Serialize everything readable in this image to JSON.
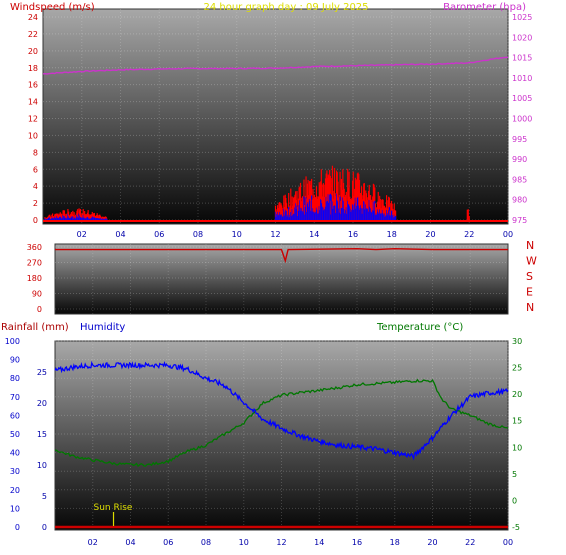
{
  "header": {
    "title": "24 hour graph day : 09 July 2025",
    "windspeed_label": "Windspeed (m/s)",
    "barometer_label": "Barometer (hpa)",
    "rainfall_label": "Rainfall (mm)",
    "humidity_label": "Humidity",
    "temperature_label": "Temperature (°C)",
    "sunrise_label": "Sun Rise"
  },
  "colors": {
    "wind": "#ff0000",
    "gust": "#0000ff",
    "barometer": "#cc33cc",
    "direction": "#cc0000",
    "humidity": "#0000ff",
    "temperature": "#007700",
    "rain": "#cc0000",
    "rain_axis": "#aa0000",
    "title": "#dddd00",
    "sunrise": "#dddd00",
    "frame": "#333333"
  },
  "chart_data": [
    {
      "type": "line",
      "name": "wind-barometer",
      "x_ticks": [
        "02",
        "04",
        "06",
        "08",
        "10",
        "12",
        "14",
        "16",
        "18",
        "20",
        "22",
        "00"
      ],
      "x_range": [
        0,
        24
      ],
      "y_left": {
        "ticks": [
          "0",
          "2",
          "4",
          "6",
          "8",
          "10",
          "12",
          "14",
          "16",
          "18",
          "20",
          "22",
          "24"
        ],
        "range": [
          0,
          24
        ]
      },
      "y_right": {
        "ticks": [
          "975",
          "980",
          "985",
          "990",
          "995",
          "1000",
          "1005",
          "1010",
          "1015",
          "1020",
          "1025"
        ],
        "range": [
          975,
          1025
        ]
      },
      "barometer": {
        "x": [
          0,
          2,
          4,
          6,
          8,
          10,
          12,
          14,
          16,
          18,
          20,
          22,
          23,
          24
        ],
        "y": [
          1011,
          1011.6,
          1012,
          1012.2,
          1012.3,
          1012.3,
          1012.4,
          1012.8,
          1013,
          1013.2,
          1013.4,
          1013.7,
          1014.5,
          1015.2
        ]
      },
      "wind_activity": [
        {
          "from": 0.1,
          "to": 3.3,
          "max": 1.4
        },
        {
          "from": 12.0,
          "to": 18.2,
          "max": 6.5
        },
        {
          "from": 21.9,
          "to": 22.0,
          "max": 1.3
        }
      ]
    },
    {
      "type": "line",
      "name": "wind-direction",
      "x_range": [
        0,
        24
      ],
      "y_left": {
        "ticks": [
          "0",
          "90",
          "180",
          "270",
          "360"
        ],
        "range": [
          0,
          360
        ]
      },
      "y_right_labels": [
        "N",
        "W",
        "S",
        "E",
        "N"
      ],
      "direction": {
        "x": [
          0,
          12.0,
          12.2,
          12.35,
          12.5,
          16.0,
          17.0,
          18.0,
          20.0,
          24.0
        ],
        "y": [
          345,
          345,
          280,
          345,
          345,
          350,
          345,
          350,
          345,
          345
        ]
      }
    },
    {
      "type": "line",
      "name": "humidity-temperature-rain",
      "x_ticks": [
        "02",
        "04",
        "06",
        "08",
        "10",
        "12",
        "14",
        "16",
        "18",
        "20",
        "22",
        "00"
      ],
      "x_range": [
        0,
        24
      ],
      "y_left_humidity": {
        "ticks": [
          "0",
          "10",
          "20",
          "30",
          "40",
          "50",
          "60",
          "70",
          "80",
          "90",
          "100"
        ],
        "range": [
          0,
          100
        ]
      },
      "y_left_rain": {
        "ticks": [
          "0",
          "5",
          "10",
          "15",
          "20",
          "25"
        ],
        "range": [
          0,
          30
        ]
      },
      "y_right_temperature": {
        "ticks": [
          "-5",
          "0",
          "5",
          "10",
          "15",
          "20",
          "25",
          "30"
        ],
        "range": [
          -5,
          30
        ]
      },
      "humidity": {
        "x": [
          0,
          1,
          2,
          3,
          4,
          5,
          6,
          7,
          8,
          9,
          10,
          11,
          12,
          13,
          14,
          15,
          16,
          17,
          18,
          19,
          20,
          21,
          22,
          23,
          24
        ],
        "y": [
          84,
          86,
          87,
          87,
          87,
          87,
          87,
          85,
          80,
          76,
          67,
          58,
          53,
          49,
          46,
          44,
          43,
          42,
          40,
          38,
          48,
          60,
          70,
          72,
          73
        ]
      },
      "temperature": {
        "x": [
          0,
          1,
          2,
          3,
          4,
          5,
          6,
          7,
          8,
          9,
          10,
          11,
          12,
          13,
          14,
          15,
          16,
          17,
          18,
          19,
          20,
          20.5,
          21,
          22,
          23,
          24
        ],
        "y": [
          9.5,
          8.3,
          7.6,
          7.0,
          6.7,
          6.7,
          7.4,
          9.2,
          10.4,
          12.5,
          14.6,
          18.3,
          19.8,
          20.3,
          20.7,
          21.2,
          21.8,
          22.0,
          22.2,
          22.5,
          22.5,
          19.0,
          17.2,
          16.0,
          14.4,
          13.5
        ]
      },
      "rain": {
        "x": [
          0,
          24
        ],
        "y": [
          0,
          0
        ]
      },
      "sunrise_hour": 3.1
    }
  ]
}
